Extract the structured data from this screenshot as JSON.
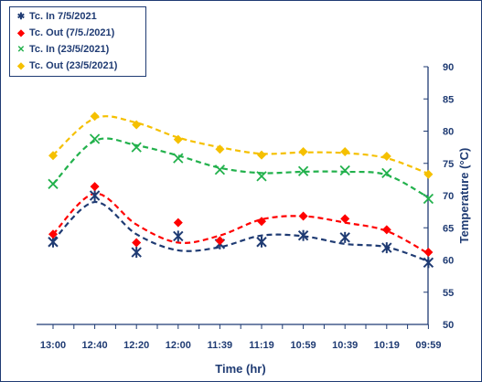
{
  "chart_data": {
    "type": "line",
    "categories": [
      "13:00",
      "12:40",
      "12:20",
      "12:00",
      "11:39",
      "11:19",
      "10:59",
      "10:39",
      "10:19",
      "09:59"
    ],
    "xlabel": "Time (hr)",
    "ylabel": "Temperature (°C)",
    "ylim": [
      50,
      90
    ],
    "yticks": [
      50,
      55,
      60,
      65,
      70,
      75,
      80,
      85,
      90
    ],
    "y_axis_side": "right",
    "grid": false,
    "legend_position": "top-left",
    "series": [
      {
        "name": "Tc. In 7/5/2021",
        "marker": "asterisk",
        "color": "#1f3b73",
        "values": [
          62.8,
          70.0,
          61.2,
          63.7,
          62.5,
          62.8,
          63.8,
          63.5,
          61.9,
          59.6
        ],
        "trend": [
          63.0,
          69.0,
          64.0,
          61.5,
          62.0,
          63.8,
          63.7,
          62.5,
          62.0,
          59.8
        ]
      },
      {
        "name": "Tc. Out (7/5./2021)",
        "marker": "diamond",
        "color": "#ff0000",
        "values": [
          64.0,
          71.4,
          62.7,
          65.8,
          63.0,
          66.0,
          66.8,
          66.4,
          64.7,
          61.2
        ],
        "trend": [
          64.0,
          70.3,
          65.5,
          62.7,
          63.8,
          66.3,
          66.8,
          65.8,
          64.5,
          61.0
        ]
      },
      {
        "name": "Tc. In (23/5/2021)",
        "marker": "x",
        "color": "#22b14c",
        "values": [
          71.8,
          78.8,
          77.5,
          75.8,
          74.0,
          73.0,
          73.8,
          73.9,
          73.5,
          69.5
        ],
        "trend": [
          71.8,
          78.5,
          77.8,
          76.2,
          74.3,
          73.5,
          73.7,
          73.7,
          73.2,
          69.7
        ]
      },
      {
        "name": "Tc. Out (23/5/2021)",
        "marker": "diamond",
        "color": "#f5c000",
        "values": [
          76.2,
          82.3,
          81.0,
          78.7,
          77.2,
          76.3,
          76.8,
          76.8,
          76.1,
          73.3
        ],
        "trend": [
          76.3,
          82.0,
          81.3,
          79.0,
          77.5,
          76.5,
          76.7,
          76.6,
          75.8,
          73.4
        ]
      }
    ]
  }
}
